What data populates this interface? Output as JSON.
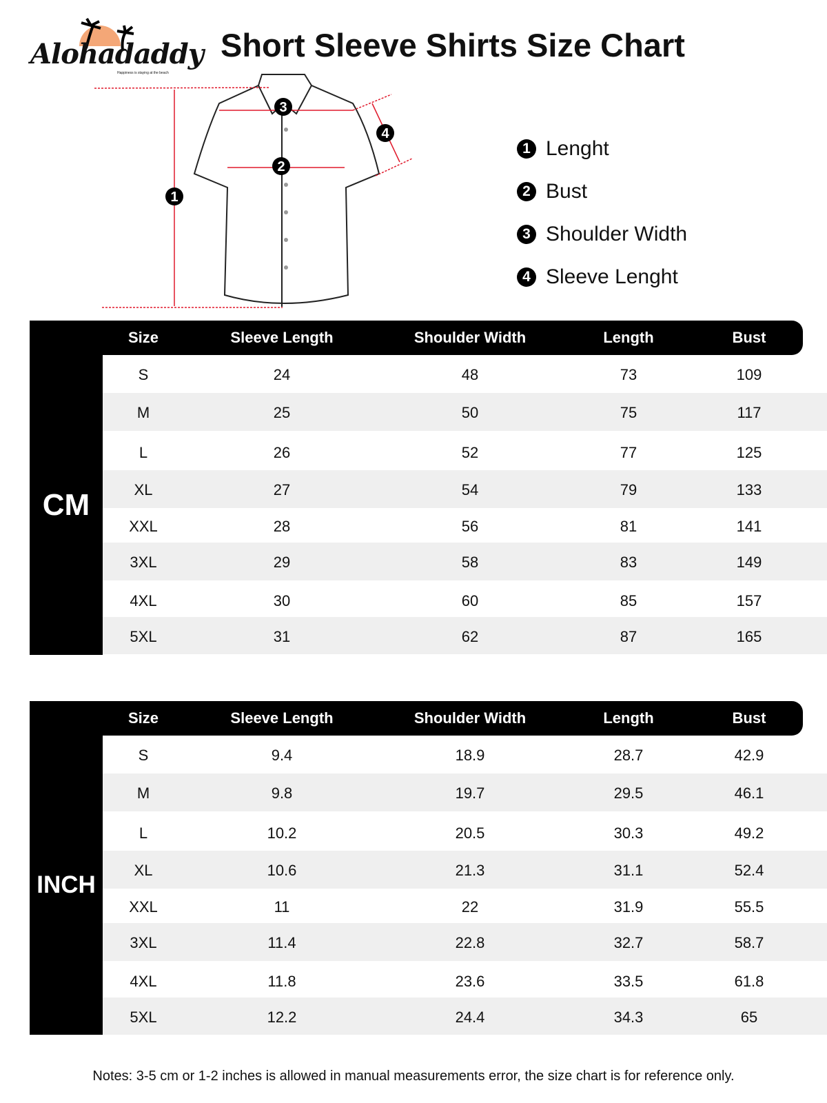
{
  "brand": {
    "name": "Alohadaddy",
    "tagline": "Happiness is staying at the beach",
    "sun_color": "#f4a777"
  },
  "title": "Short Sleeve Shirts Size Chart",
  "legend": [
    {
      "num": "1",
      "label": "Lenght"
    },
    {
      "num": "2",
      "label": "Bust"
    },
    {
      "num": "3",
      "label": "Shoulder Width"
    },
    {
      "num": "4",
      "label": "Sleeve Lenght"
    }
  ],
  "columns": [
    "Size",
    "Sleeve Length",
    "Shoulder Width",
    "Length",
    "Bust"
  ],
  "cm": {
    "unit": "CM",
    "rows": [
      [
        "S",
        "24",
        "48",
        "73",
        "109"
      ],
      [
        "M",
        "25",
        "50",
        "75",
        "117"
      ],
      [
        "L",
        "26",
        "52",
        "77",
        "125"
      ],
      [
        "XL",
        "27",
        "54",
        "79",
        "133"
      ],
      [
        "XXL",
        "28",
        "56",
        "81",
        "141"
      ],
      [
        "3XL",
        "29",
        "58",
        "83",
        "149"
      ],
      [
        "4XL",
        "30",
        "60",
        "85",
        "157"
      ],
      [
        "5XL",
        "31",
        "62",
        "87",
        "165"
      ]
    ]
  },
  "inch": {
    "unit": "INCH",
    "rows": [
      [
        "S",
        "9.4",
        "18.9",
        "28.7",
        "42.9"
      ],
      [
        "M",
        "9.8",
        "19.7",
        "29.5",
        "46.1"
      ],
      [
        "L",
        "10.2",
        "20.5",
        "30.3",
        "49.2"
      ],
      [
        "XL",
        "10.6",
        "21.3",
        "31.1",
        "52.4"
      ],
      [
        "XXL",
        "11",
        "22",
        "31.9",
        "55.5"
      ],
      [
        "3XL",
        "11.4",
        "22.8",
        "32.7",
        "58.7"
      ],
      [
        "4XL",
        "11.8",
        "23.6",
        "33.5",
        "61.8"
      ],
      [
        "5XL",
        "12.2",
        "24.4",
        "34.3",
        "65"
      ]
    ]
  },
  "notes": "Notes: 3-5 cm or 1-2 inches is allowed in manual measurements error, the size chart is for reference only.",
  "colors": {
    "measure_line": "#e0192b",
    "header_bg": "#000000",
    "alt_row": "#efefef"
  }
}
